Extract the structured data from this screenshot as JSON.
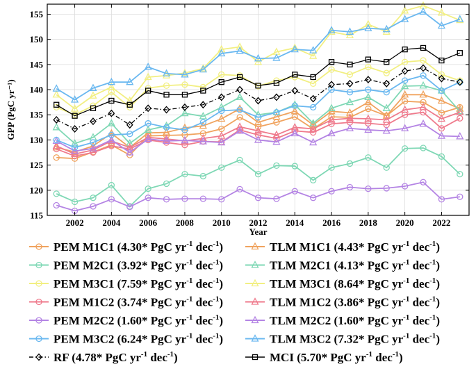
{
  "chart_data": {
    "type": "line",
    "xlabel": "Year",
    "ylabel": "GPP (PgC yr⁻¹)",
    "xlim": [
      2000.5,
      2023.5
    ],
    "ylim": [
      115,
      157
    ],
    "x_ticks": [
      2002,
      2004,
      2006,
      2008,
      2010,
      2012,
      2014,
      2016,
      2018,
      2020,
      2022
    ],
    "y_ticks": [
      115,
      120,
      125,
      130,
      135,
      140,
      145,
      150,
      155
    ],
    "grid": true,
    "legend_position": "bottom",
    "x": [
      2001,
      2002,
      2003,
      2004,
      2005,
      2006,
      2007,
      2008,
      2009,
      2010,
      2011,
      2012,
      2013,
      2014,
      2015,
      2016,
      2017,
      2018,
      2019,
      2020,
      2021,
      2022,
      2023
    ],
    "series": [
      {
        "name": "PEM M1C1",
        "trend": "4.30*",
        "color": "#f0a35e",
        "marker": "circle",
        "dash": "solid",
        "values": [
          126.5,
          126.3,
          127.6,
          129.0,
          127.0,
          130.8,
          130.9,
          131.0,
          131.3,
          132.2,
          134.5,
          132.6,
          133.5,
          134.6,
          132.2,
          134.6,
          134.5,
          136.2,
          134.8,
          137.7,
          137.5,
          135.4,
          136.5
        ]
      },
      {
        "name": "TLM M1C1",
        "trend": "4.43*",
        "color": "#f0a35e",
        "marker": "triangle",
        "dash": "solid",
        "values": [
          128.5,
          127.6,
          128.8,
          131.3,
          128.5,
          131.4,
          131.5,
          132.4,
          132.8,
          134.2,
          136.2,
          133.5,
          134.6,
          135.7,
          133.0,
          135.7,
          135.4,
          137.5,
          134.8,
          139.0,
          139.0,
          137.8,
          136.2
        ]
      },
      {
        "name": "PEM M2C1",
        "trend": "3.92*",
        "color": "#7fd8b5",
        "marker": "circle",
        "dash": "solid",
        "values": [
          119.3,
          117.7,
          118.5,
          121.0,
          116.8,
          120.3,
          121.3,
          123.2,
          122.8,
          124.5,
          126.0,
          123.2,
          124.9,
          124.8,
          122.0,
          124.5,
          125.3,
          126.5,
          124.5,
          128.3,
          128.4,
          126.7,
          123.2
        ]
      },
      {
        "name": "TLM M2C1",
        "trend": "4.13*",
        "color": "#7fd8b5",
        "marker": "triangle",
        "dash": "solid",
        "values": [
          132.5,
          129.3,
          130.5,
          133.3,
          129.3,
          132.0,
          132.8,
          135.3,
          134.7,
          136.5,
          138.5,
          135.0,
          135.5,
          137.0,
          133.3,
          136.3,
          137.5,
          138.5,
          136.3,
          140.7,
          140.8,
          139.8,
          135.7
        ]
      },
      {
        "name": "PEM M3C1",
        "trend": "7.59*",
        "color": "#f2ef82",
        "marker": "circle",
        "dash": "solid",
        "values": [
          136.5,
          135.0,
          136.8,
          139.5,
          136.5,
          140.3,
          140.8,
          141.0,
          140.5,
          143.0,
          142.8,
          140.7,
          141.8,
          142.5,
          141.2,
          144.0,
          143.0,
          144.5,
          143.3,
          145.5,
          145.8,
          143.0,
          141.8
        ]
      },
      {
        "name": "TLM M3C1",
        "trend": "8.64*",
        "color": "#f2ef82",
        "marker": "triangle",
        "dash": "solid",
        "values": [
          139.0,
          136.2,
          138.8,
          140.5,
          137.8,
          142.5,
          142.8,
          143.3,
          144.2,
          148.0,
          148.5,
          145.5,
          147.5,
          148.3,
          146.7,
          151.5,
          150.8,
          153.0,
          151.5,
          155.7,
          156.7,
          155.3,
          153.8
        ]
      },
      {
        "name": "PEM M1C2",
        "trend": "3.74*",
        "color": "#ef7a8c",
        "marker": "circle",
        "dash": "solid",
        "values": [
          128.2,
          126.8,
          127.5,
          128.8,
          128.2,
          130.0,
          129.5,
          129.0,
          129.7,
          129.6,
          132.0,
          131.0,
          130.3,
          131.8,
          131.5,
          133.2,
          133.5,
          133.3,
          133.0,
          135.0,
          135.5,
          132.3,
          134.3
        ]
      },
      {
        "name": "TLM M1C2",
        "trend": "3.86*",
        "color": "#ef7a8c",
        "marker": "triangle",
        "dash": "solid",
        "values": [
          128.8,
          127.2,
          128.0,
          129.8,
          128.5,
          130.5,
          130.2,
          129.8,
          130.3,
          130.8,
          132.6,
          131.8,
          131.0,
          132.5,
          132.2,
          134.0,
          134.3,
          134.2,
          134.0,
          136.0,
          136.5,
          134.2,
          135.5
        ]
      },
      {
        "name": "PEM M2C2",
        "trend": "1.60*",
        "color": "#b484e4",
        "marker": "circle",
        "dash": "solid",
        "values": [
          117.0,
          115.9,
          116.8,
          118.2,
          116.7,
          118.5,
          118.2,
          118.3,
          118.3,
          118.2,
          120.2,
          118.5,
          118.3,
          119.8,
          118.5,
          119.8,
          120.6,
          120.3,
          120.4,
          120.8,
          121.6,
          118.2,
          118.7
        ]
      },
      {
        "name": "TLM M2C2",
        "trend": "1.60*",
        "color": "#b484e4",
        "marker": "triangle",
        "dash": "solid",
        "values": [
          129.8,
          127.8,
          128.3,
          130.0,
          127.5,
          130.2,
          129.8,
          129.9,
          129.7,
          129.5,
          131.8,
          130.0,
          129.6,
          131.3,
          129.5,
          131.3,
          132.3,
          132.0,
          131.8,
          132.3,
          133.2,
          130.8,
          130.7
        ]
      },
      {
        "name": "PEM M3C2",
        "trend": "6.24*",
        "color": "#6ab8f0",
        "marker": "circle",
        "dash": "solid",
        "values": [
          130.0,
          128.5,
          129.5,
          131.0,
          131.2,
          133.3,
          132.5,
          132.0,
          133.5,
          135.8,
          136.0,
          134.5,
          135.5,
          136.8,
          136.5,
          140.0,
          139.5,
          140.0,
          139.5,
          141.8,
          142.8,
          139.8,
          141.5
        ]
      },
      {
        "name": "TLM M3C2",
        "trend": "7.32*",
        "color": "#6ab8f0",
        "marker": "triangle",
        "dash": "solid",
        "values": [
          140.2,
          138.0,
          140.3,
          141.5,
          141.5,
          144.5,
          143.2,
          143.0,
          144.0,
          147.2,
          147.7,
          146.2,
          146.3,
          148.0,
          147.8,
          151.8,
          151.5,
          152.2,
          152.0,
          154.0,
          155.5,
          152.7,
          154.0
        ]
      },
      {
        "name": "RF",
        "trend": "4.78*",
        "color": "#000000",
        "marker": "diamond",
        "dash": "dashdot",
        "values": [
          134.0,
          132.2,
          133.7,
          135.3,
          133.0,
          136.3,
          136.0,
          136.5,
          137.0,
          138.5,
          140.0,
          137.8,
          138.5,
          139.8,
          138.2,
          141.0,
          141.2,
          142.0,
          141.2,
          143.7,
          144.3,
          142.2,
          141.5
        ]
      },
      {
        "name": "MCI",
        "trend": "5.70*",
        "color": "#000000",
        "marker": "square",
        "dash": "solid",
        "values": [
          137.0,
          134.8,
          136.3,
          137.8,
          137.0,
          139.8,
          139.0,
          139.0,
          139.8,
          141.5,
          142.5,
          140.8,
          141.3,
          143.0,
          142.5,
          145.5,
          145.0,
          146.0,
          145.5,
          148.0,
          148.3,
          145.8,
          147.3
        ]
      }
    ],
    "legend_unit": {
      "prefix": " PgC yr",
      "exp1": "-1",
      "mid": " dec",
      "exp2": "-1",
      "suffix": ")"
    }
  }
}
